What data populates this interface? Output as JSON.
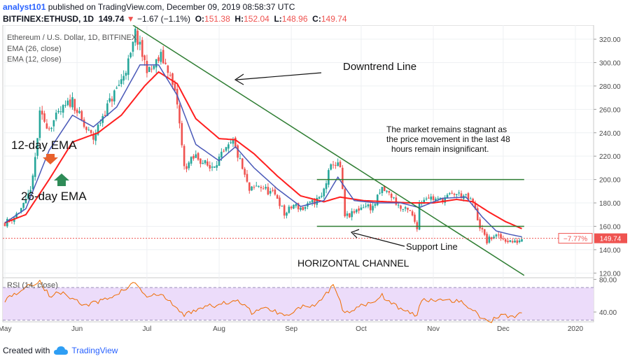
{
  "header": {
    "author": "analyst101",
    "published_text": "published on TradingView.com, December 09, 2019 08:58:37 UTC",
    "symbol": "BITFINEX:ETHUSD, 1D",
    "last": "149.74",
    "change_arrow": "▼",
    "change": "−1.67 (−1.1%)",
    "o_label": "O:",
    "o_value": "151.38",
    "h_label": "H:",
    "h_value": "152.04",
    "l_label": "L:",
    "l_value": "148.96",
    "c_label": "C:",
    "c_value": "149.74"
  },
  "footer": {
    "created_with": "Created with",
    "brand": "TradingView"
  },
  "colors": {
    "up": "#26a69a",
    "down": "#ef5350",
    "ema26": "#ff1f1f",
    "ema12": "#4a59b8",
    "trendline": "#2e7d32",
    "rsi_line": "#ef6c00",
    "rsi_band": "#ecdcfa",
    "price_tag": "#ef5350"
  },
  "chart_data": {
    "type": "candlestick",
    "title": "Ethereum / U.S. Dollar, 1D, BITFINEX",
    "legend": [
      "EMA (26, close)",
      "EMA (12, close)"
    ],
    "price_axis": {
      "range": [
        116,
        332
      ],
      "ticks": [
        120,
        140,
        160,
        180,
        200,
        220,
        240,
        260,
        280,
        300,
        320
      ]
    },
    "time_axis": {
      "labels": [
        "May",
        "Jun",
        "Jul",
        "Aug",
        "Sep",
        "Oct",
        "Nov",
        "Dec",
        "2020"
      ]
    },
    "last_price": "149.74",
    "change_percent": "−7.77%",
    "close_keyframes": [
      [
        "2019-05-01",
        163
      ],
      [
        "2019-05-05",
        168
      ],
      [
        "2019-05-10",
        180
      ],
      [
        "2019-05-13",
        200
      ],
      [
        "2019-05-16",
        255
      ],
      [
        "2019-05-20",
        245
      ],
      [
        "2019-05-25",
        258
      ],
      [
        "2019-05-30",
        268
      ],
      [
        "2019-06-04",
        245
      ],
      [
        "2019-06-08",
        235
      ],
      [
        "2019-06-12",
        255
      ],
      [
        "2019-06-16",
        270
      ],
      [
        "2019-06-20",
        285
      ],
      [
        "2019-06-24",
        305
      ],
      [
        "2019-06-26",
        325
      ],
      [
        "2019-06-30",
        300
      ],
      [
        "2019-07-02",
        292
      ],
      [
        "2019-07-07",
        305
      ],
      [
        "2019-07-10",
        295
      ],
      [
        "2019-07-14",
        265
      ],
      [
        "2019-07-17",
        210
      ],
      [
        "2019-07-22",
        220
      ],
      [
        "2019-07-28",
        210
      ],
      [
        "2019-08-03",
        222
      ],
      [
        "2019-08-07",
        232
      ],
      [
        "2019-08-10",
        215
      ],
      [
        "2019-08-14",
        190
      ],
      [
        "2019-08-18",
        195
      ],
      [
        "2019-08-22",
        190
      ],
      [
        "2019-08-26",
        185
      ],
      [
        "2019-08-29",
        170
      ],
      [
        "2019-09-02",
        178
      ],
      [
        "2019-09-06",
        175
      ],
      [
        "2019-09-10",
        180
      ],
      [
        "2019-09-14",
        185
      ],
      [
        "2019-09-17",
        205
      ],
      [
        "2019-09-19",
        215
      ],
      [
        "2019-09-22",
        210
      ],
      [
        "2019-09-24",
        168
      ],
      [
        "2019-09-27",
        170
      ],
      [
        "2019-10-02",
        178
      ],
      [
        "2019-10-06",
        176
      ],
      [
        "2019-10-10",
        192
      ],
      [
        "2019-10-14",
        186
      ],
      [
        "2019-10-18",
        175
      ],
      [
        "2019-10-22",
        172
      ],
      [
        "2019-10-25",
        160
      ],
      [
        "2019-10-26",
        180
      ],
      [
        "2019-10-29",
        186
      ],
      [
        "2019-11-03",
        182
      ],
      [
        "2019-11-07",
        185
      ],
      [
        "2019-11-10",
        188
      ],
      [
        "2019-11-14",
        186
      ],
      [
        "2019-11-18",
        180
      ],
      [
        "2019-11-21",
        160
      ],
      [
        "2019-11-24",
        147
      ],
      [
        "2019-11-27",
        152
      ],
      [
        "2019-11-30",
        150
      ],
      [
        "2019-12-03",
        148
      ],
      [
        "2019-12-06",
        146
      ],
      [
        "2019-12-09",
        149.74
      ]
    ],
    "ema26_keyframes": [
      [
        "2019-05-01",
        163
      ],
      [
        "2019-05-10",
        170
      ],
      [
        "2019-05-20",
        200
      ],
      [
        "2019-05-30",
        232
      ],
      [
        "2019-06-10",
        240
      ],
      [
        "2019-06-20",
        255
      ],
      [
        "2019-06-30",
        280
      ],
      [
        "2019-07-06",
        292
      ],
      [
        "2019-07-14",
        282
      ],
      [
        "2019-07-22",
        252
      ],
      [
        "2019-08-01",
        235
      ],
      [
        "2019-08-08",
        234
      ],
      [
        "2019-08-16",
        222
      ],
      [
        "2019-08-26",
        203
      ],
      [
        "2019-09-05",
        186
      ],
      [
        "2019-09-15",
        181
      ],
      [
        "2019-09-22",
        185
      ],
      [
        "2019-10-02",
        182
      ],
      [
        "2019-10-12",
        181
      ],
      [
        "2019-10-22",
        180
      ],
      [
        "2019-11-01",
        180
      ],
      [
        "2019-11-11",
        183
      ],
      [
        "2019-11-18",
        181
      ],
      [
        "2019-11-25",
        172
      ],
      [
        "2019-12-02",
        164
      ],
      [
        "2019-12-09",
        158
      ]
    ],
    "ema12_keyframes": [
      [
        "2019-05-01",
        163
      ],
      [
        "2019-05-10",
        175
      ],
      [
        "2019-05-20",
        225
      ],
      [
        "2019-05-30",
        255
      ],
      [
        "2019-06-08",
        245
      ],
      [
        "2019-06-18",
        262
      ],
      [
        "2019-06-28",
        298
      ],
      [
        "2019-07-06",
        298
      ],
      [
        "2019-07-14",
        272
      ],
      [
        "2019-07-22",
        230
      ],
      [
        "2019-08-01",
        216
      ],
      [
        "2019-08-08",
        228
      ],
      [
        "2019-08-16",
        210
      ],
      [
        "2019-08-26",
        192
      ],
      [
        "2019-09-05",
        177
      ],
      [
        "2019-09-15",
        182
      ],
      [
        "2019-09-21",
        202
      ],
      [
        "2019-09-28",
        182
      ],
      [
        "2019-10-08",
        180
      ],
      [
        "2019-10-18",
        180
      ],
      [
        "2019-10-26",
        176
      ],
      [
        "2019-11-05",
        184
      ],
      [
        "2019-11-15",
        185
      ],
      [
        "2019-11-22",
        168
      ],
      [
        "2019-11-28",
        156
      ],
      [
        "2019-12-04",
        153
      ],
      [
        "2019-12-09",
        151
      ]
    ],
    "rsi": {
      "label": "RSI (14, close)",
      "range": [
        28,
        82
      ],
      "ticks": [
        40,
        80
      ],
      "tick_labels": [
        "40.00",
        "80.00"
      ],
      "band": [
        30,
        70
      ],
      "keyframes": [
        [
          "2019-05-01",
          55
        ],
        [
          "2019-05-05",
          62
        ],
        [
          "2019-05-10",
          70
        ],
        [
          "2019-05-16",
          78
        ],
        [
          "2019-05-20",
          60
        ],
        [
          "2019-05-26",
          64
        ],
        [
          "2019-06-04",
          48
        ],
        [
          "2019-06-10",
          52
        ],
        [
          "2019-06-18",
          62
        ],
        [
          "2019-06-26",
          76
        ],
        [
          "2019-07-01",
          58
        ],
        [
          "2019-07-07",
          62
        ],
        [
          "2019-07-17",
          36
        ],
        [
          "2019-07-24",
          46
        ],
        [
          "2019-08-01",
          48
        ],
        [
          "2019-08-08",
          56
        ],
        [
          "2019-08-15",
          40
        ],
        [
          "2019-08-22",
          45
        ],
        [
          "2019-08-29",
          36
        ],
        [
          "2019-09-05",
          46
        ],
        [
          "2019-09-12",
          48
        ],
        [
          "2019-09-19",
          72
        ],
        [
          "2019-09-24",
          38
        ],
        [
          "2019-10-02",
          48
        ],
        [
          "2019-10-10",
          60
        ],
        [
          "2019-10-18",
          44
        ],
        [
          "2019-10-25",
          35
        ],
        [
          "2019-10-27",
          55
        ],
        [
          "2019-11-07",
          56
        ],
        [
          "2019-11-14",
          52
        ],
        [
          "2019-11-21",
          34
        ],
        [
          "2019-11-25",
          28
        ],
        [
          "2019-12-01",
          38
        ],
        [
          "2019-12-05",
          34
        ],
        [
          "2019-12-09",
          40
        ]
      ]
    },
    "drawings": {
      "downtrend_line": {
        "from": [
          "2019-06-25",
          332
        ],
        "to": [
          "2019-12-10",
          118
        ]
      },
      "channel_top": {
        "from": [
          "2019-09-12",
          200
        ],
        "to": [
          "2019-12-10",
          200
        ]
      },
      "channel_bottom": {
        "from": [
          "2019-09-12",
          160
        ],
        "to": [
          "2019-12-10",
          160
        ]
      }
    },
    "annotations": {
      "downtrend": "Downtrend Line",
      "market_text": [
        "The market remains stagnant as",
        "the price movement in the last 48",
        "hours remain insignificant."
      ],
      "ema12": "12-day EMA",
      "ema26": "26-day EMA",
      "support": "Support Line",
      "channel": "HORIZONTAL CHANNEL"
    }
  }
}
